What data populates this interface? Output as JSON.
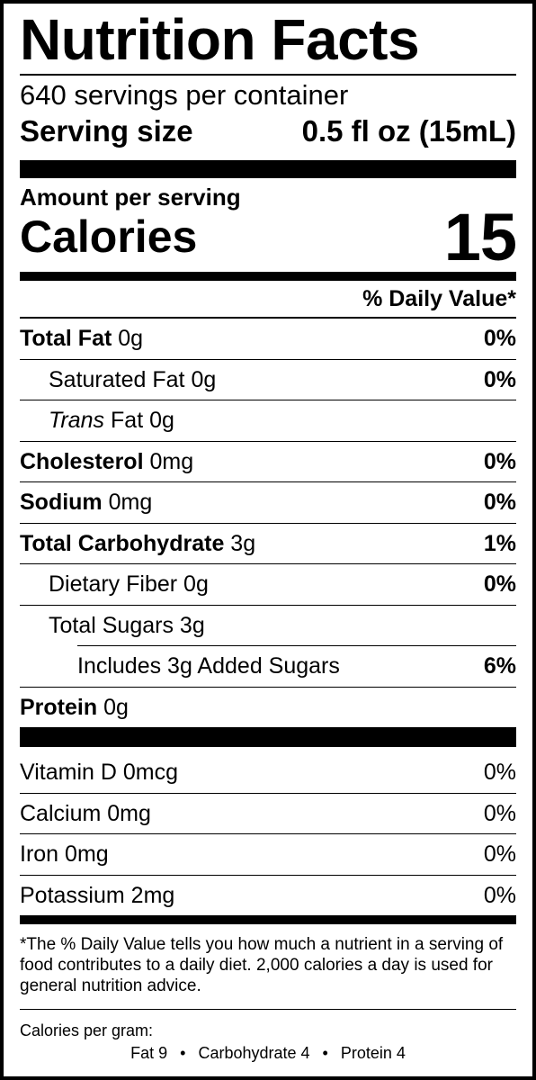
{
  "title": "Nutrition Facts",
  "servings_per_container": "640 servings per container",
  "serving_size": {
    "label": "Serving size",
    "value": "0.5 fl oz (15mL)"
  },
  "amount_per_serving": "Amount per serving",
  "calories": {
    "label": "Calories",
    "value": "15"
  },
  "daily_value_header": "% Daily Value*",
  "nutrients": [
    {
      "name": "Total Fat",
      "amount": "0g",
      "dv": "0%"
    },
    {
      "name": "Saturated Fat",
      "amount": "0g",
      "dv": "0%"
    },
    {
      "name": "Trans",
      "suffix": "Fat",
      "amount": "0g",
      "dv": ""
    },
    {
      "name": "Cholesterol",
      "amount": "0mg",
      "dv": "0%"
    },
    {
      "name": "Sodium",
      "amount": "0mg",
      "dv": "0%"
    },
    {
      "name": "Total Carbohydrate",
      "amount": "3g",
      "dv": "1%"
    },
    {
      "name": "Dietary Fiber",
      "amount": "0g",
      "dv": "0%"
    },
    {
      "name": "Total Sugars",
      "amount": "3g",
      "dv": ""
    },
    {
      "name": "Includes 3g Added Sugars",
      "amount": "",
      "dv": "6%"
    },
    {
      "name": "Protein",
      "amount": "0g",
      "dv": ""
    }
  ],
  "vitamins": [
    {
      "name": "Vitamin D",
      "amount": "0mcg",
      "dv": "0%"
    },
    {
      "name": "Calcium",
      "amount": "0mg",
      "dv": "0%"
    },
    {
      "name": "Iron",
      "amount": "0mg",
      "dv": "0%"
    },
    {
      "name": "Potassium",
      "amount": "2mg",
      "dv": "0%"
    }
  ],
  "footnote": "*The % Daily Value tells you how much a nutrient in a serving of food contributes to a daily diet. 2,000 calories a day is used for general nutrition advice.",
  "calories_per_gram": {
    "label": "Calories per gram:",
    "fat": "Fat 9",
    "carbohydrate": "Carbohydrate 4",
    "protein": "Protein 4",
    "separator": "•"
  }
}
